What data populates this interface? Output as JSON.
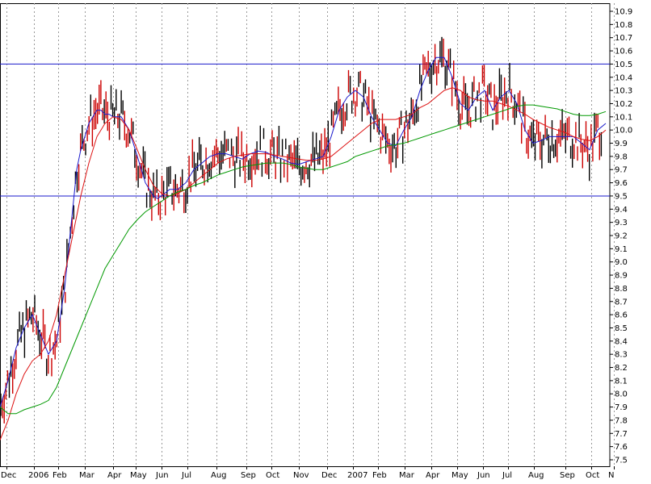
{
  "chart_data": {
    "type": "line",
    "title": "",
    "xlabel": "",
    "ylabel": "",
    "ylim": [
      7.5,
      10.9
    ],
    "grid": "vertical dotted",
    "y_ticks": [
      7.5,
      7.6,
      7.7,
      7.8,
      7.9,
      8.0,
      8.1,
      8.2,
      8.3,
      8.4,
      8.5,
      8.6,
      8.7,
      8.8,
      8.9,
      9.0,
      9.1,
      9.2,
      9.3,
      9.4,
      9.5,
      9.6,
      9.7,
      9.8,
      9.9,
      10.0,
      10.1,
      10.2,
      10.3,
      10.4,
      10.5,
      10.6,
      10.7,
      10.8,
      10.9
    ],
    "x_ticks": [
      "Dec",
      "2006",
      "Feb",
      "Mar",
      "Apr",
      "May",
      "Jun",
      "Jul",
      "Aug",
      "Sep",
      "Oct",
      "Nov",
      "Dec",
      "2007",
      "Feb",
      "Mar",
      "Apr",
      "May",
      "Jun",
      "Jul",
      "Aug",
      "Sep",
      "Oct",
      "N"
    ],
    "horizontal_lines": [
      {
        "value": 10.5,
        "color": "#1a1acc"
      },
      {
        "value": 9.5,
        "color": "#1a1acc"
      }
    ],
    "price_color": "#cc0000",
    "price_alt_color": "#000000",
    "series": [
      {
        "color": "#1a1acc",
        "x": [
          0,
          10,
          20,
          30,
          40,
          50,
          60,
          70,
          80,
          90,
          95,
          100,
          105,
          110,
          115,
          120,
          125,
          130,
          135,
          140,
          150,
          160,
          170,
          180,
          190,
          195,
          200,
          210,
          220,
          230,
          240,
          250,
          260,
          270,
          280,
          290,
          300,
          310,
          320,
          330,
          340,
          350,
          360,
          370,
          380,
          390,
          400,
          410,
          420,
          430,
          440,
          450,
          460,
          470,
          480,
          490,
          500,
          510,
          520,
          530,
          540,
          550,
          560,
          570,
          580,
          590,
          600,
          610,
          620,
          630,
          640,
          650,
          660,
          670,
          680,
          690,
          700,
          710,
          720,
          730,
          740,
          750
        ],
        "values": [
          7.9,
          8.1,
          8.35,
          8.5,
          8.6,
          8.45,
          8.3,
          8.4,
          8.8,
          9.4,
          9.7,
          9.85,
          9.95,
          10.05,
          10.1,
          10.15,
          10.15,
          10.12,
          10.12,
          10.1,
          10.1,
          10.0,
          9.8,
          9.6,
          9.5,
          9.48,
          9.5,
          9.55,
          9.55,
          9.6,
          9.7,
          9.75,
          9.8,
          9.82,
          9.82,
          9.8,
          9.78,
          9.82,
          9.84,
          9.83,
          9.8,
          9.78,
          9.75,
          9.74,
          9.76,
          9.78,
          9.8,
          9.95,
          10.15,
          10.25,
          10.3,
          10.25,
          10.1,
          10.0,
          9.9,
          9.88,
          10.0,
          10.1,
          10.3,
          10.45,
          10.55,
          10.55,
          10.4,
          10.2,
          10.15,
          10.25,
          10.3,
          10.15,
          10.25,
          10.3,
          10.2,
          10.0,
          9.9,
          9.92,
          9.95,
          9.95,
          9.95,
          9.95,
          9.9,
          9.85,
          10.0,
          10.05
        ]
      },
      {
        "color": "#dd1111",
        "x": [
          0,
          10,
          20,
          30,
          40,
          50,
          60,
          70,
          80,
          90,
          100,
          110,
          120,
          130,
          140,
          150,
          160,
          170,
          180,
          190,
          200,
          210,
          220,
          230,
          240,
          250,
          260,
          270,
          280,
          290,
          300,
          310,
          320,
          330,
          340,
          350,
          360,
          370,
          380,
          390,
          400,
          410,
          420,
          430,
          440,
          450,
          460,
          470,
          480,
          490,
          500,
          510,
          520,
          530,
          540,
          550,
          560,
          570,
          580,
          590,
          600,
          610,
          620,
          630,
          640,
          650,
          660,
          670,
          680,
          690,
          700,
          710,
          720,
          730,
          740,
          750
        ],
        "values": [
          7.65,
          7.8,
          8.0,
          8.15,
          8.25,
          8.3,
          8.4,
          8.6,
          8.9,
          9.2,
          9.5,
          9.75,
          9.95,
          10.05,
          10.1,
          10.08,
          10.0,
          9.85,
          9.7,
          9.58,
          9.52,
          9.5,
          9.52,
          9.55,
          9.6,
          9.65,
          9.7,
          9.75,
          9.78,
          9.8,
          9.81,
          9.82,
          9.82,
          9.82,
          9.81,
          9.8,
          9.79,
          9.78,
          9.77,
          9.77,
          9.78,
          9.8,
          9.85,
          9.9,
          9.95,
          10.0,
          10.05,
          10.08,
          10.08,
          10.08,
          10.1,
          10.12,
          10.17,
          10.2,
          10.25,
          10.3,
          10.32,
          10.3,
          10.25,
          10.23,
          10.22,
          10.22,
          10.2,
          10.18,
          10.15,
          10.12,
          10.08,
          10.05,
          10.02,
          10.0,
          9.98,
          9.95,
          9.93,
          9.92,
          9.95,
          10.0
        ]
      },
      {
        "color": "#009900",
        "x": [
          0,
          10,
          20,
          30,
          40,
          50,
          60,
          70,
          80,
          90,
          100,
          110,
          120,
          130,
          140,
          150,
          160,
          170,
          180,
          190,
          200,
          210,
          220,
          230,
          240,
          250,
          260,
          270,
          280,
          290,
          300,
          310,
          320,
          330,
          340,
          350,
          360,
          370,
          380,
          390,
          400,
          410,
          420,
          430,
          440,
          450,
          460,
          470,
          480,
          490,
          500,
          510,
          520,
          530,
          540,
          550,
          560,
          570,
          580,
          590,
          600,
          610,
          620,
          630,
          640,
          650,
          660,
          670,
          680,
          690,
          700,
          710,
          720,
          730,
          740,
          750
        ],
        "values": [
          7.9,
          7.85,
          7.85,
          7.88,
          7.9,
          7.92,
          7.95,
          8.05,
          8.2,
          8.35,
          8.5,
          8.65,
          8.8,
          8.95,
          9.05,
          9.15,
          9.25,
          9.32,
          9.38,
          9.42,
          9.46,
          9.5,
          9.53,
          9.55,
          9.58,
          9.6,
          9.63,
          9.66,
          9.68,
          9.7,
          9.72,
          9.73,
          9.74,
          9.75,
          9.75,
          9.75,
          9.74,
          9.72,
          9.71,
          9.7,
          9.7,
          9.72,
          9.74,
          9.76,
          9.8,
          9.82,
          9.84,
          9.86,
          9.88,
          9.89,
          9.9,
          9.92,
          9.94,
          9.96,
          9.98,
          10.0,
          10.02,
          10.04,
          10.06,
          10.08,
          10.1,
          10.12,
          10.14,
          10.16,
          10.18,
          10.19,
          10.19,
          10.18,
          10.17,
          10.16,
          10.14,
          10.12,
          10.11,
          10.11,
          10.12,
          10.14
        ]
      }
    ]
  }
}
